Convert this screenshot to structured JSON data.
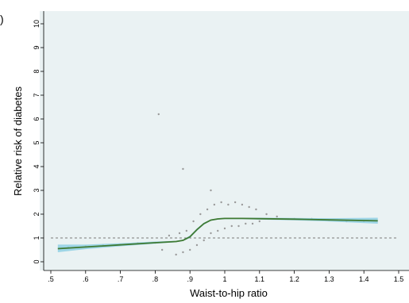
{
  "chart_data": {
    "type": "line",
    "panel_label": ")",
    "title": "",
    "xlabel": "Waist-to-hip ratio",
    "ylabel": "Relative risk of diabetes",
    "xlim": [
      0.5,
      1.5
    ],
    "ylim": [
      0,
      10
    ],
    "x_ticks": [
      ".5",
      ".6",
      ".7",
      ".8",
      ".9",
      "1",
      "1.1",
      "1.2",
      "1.3",
      "1.4",
      "1.5"
    ],
    "y_ticks": [
      "0",
      "1",
      "2",
      "3",
      "4",
      "5",
      "6",
      "7",
      "8",
      "9",
      "10"
    ],
    "grid": false,
    "reference_line": {
      "y": 1,
      "style": "dashed"
    },
    "colors": {
      "plot_background": "#eaf2f3",
      "line": "#3f7a32",
      "confidence_band": "#8fd0e3",
      "scatter": "#9a9a9a",
      "reference_line": "#7a7a7a"
    },
    "series": [
      {
        "type": "line",
        "x": [
          0.52,
          0.6,
          0.7,
          0.8,
          0.86,
          0.88,
          0.9,
          0.92,
          0.94,
          0.96,
          0.98,
          1.0,
          1.05,
          1.1,
          1.2,
          1.3,
          1.44
        ],
        "y": [
          0.55,
          0.62,
          0.71,
          0.8,
          0.85,
          0.9,
          1.05,
          1.35,
          1.6,
          1.75,
          1.8,
          1.82,
          1.82,
          1.81,
          1.79,
          1.76,
          1.72
        ],
        "lower": [
          0.4,
          0.53,
          0.65,
          0.76,
          0.82,
          0.87,
          1.0,
          1.3,
          1.56,
          1.72,
          1.77,
          1.79,
          1.79,
          1.77,
          1.74,
          1.69,
          1.6
        ],
        "upper": [
          0.72,
          0.72,
          0.78,
          0.85,
          0.88,
          0.93,
          1.1,
          1.4,
          1.64,
          1.78,
          1.83,
          1.85,
          1.85,
          1.85,
          1.84,
          1.83,
          1.85
        ]
      },
      {
        "type": "scatter",
        "x": [
          0.55,
          0.6,
          0.65,
          0.7,
          0.75,
          0.8,
          0.82,
          0.84,
          0.86,
          0.87,
          0.88,
          0.89,
          0.9,
          0.91,
          0.92,
          0.93,
          0.94,
          0.95,
          0.96,
          0.97,
          0.98,
          0.99,
          1.0,
          1.01,
          1.02,
          1.03,
          1.04,
          1.05,
          1.06,
          1.07,
          1.08,
          1.09,
          1.1,
          1.12,
          1.15,
          1.2,
          1.25,
          1.3,
          1.35,
          1.4,
          0.81,
          0.88,
          0.96
        ],
        "y": [
          0.6,
          0.65,
          0.7,
          0.72,
          0.78,
          0.8,
          0.5,
          1.1,
          0.3,
          1.2,
          0.4,
          1.3,
          0.5,
          1.7,
          0.7,
          2.0,
          0.9,
          2.2,
          1.2,
          2.4,
          1.3,
          2.5,
          1.4,
          2.4,
          1.5,
          2.5,
          1.5,
          2.4,
          1.6,
          2.3,
          1.6,
          2.2,
          1.7,
          2.0,
          1.9,
          1.8,
          1.8,
          1.75,
          1.7,
          1.7,
          6.2,
          3.9,
          3.0
        ]
      }
    ]
  }
}
